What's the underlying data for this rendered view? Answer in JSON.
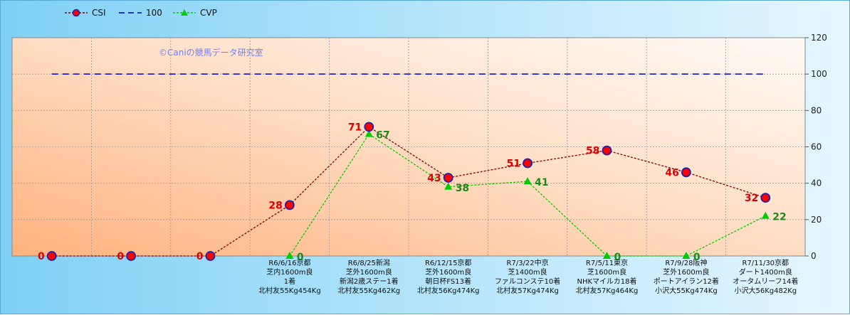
{
  "watermark": "©Caniの競馬データ研究室",
  "legend": [
    "CSI",
    "100",
    "CVP"
  ],
  "colors": {
    "csi_line": "#8b0000",
    "csi_marker_fill": "#ff0000",
    "csi_marker_edge": "#1f1fb0",
    "ref_line": "#0000cc",
    "cvp_line": "#00cc00",
    "cvp_marker": "#00cc00",
    "csi_label": "#e00000",
    "cvp_label": "#1a8a1a"
  },
  "chart_data": {
    "type": "line",
    "ylim": [
      0,
      120
    ],
    "yticks": [
      0,
      20,
      40,
      60,
      80,
      100,
      120
    ],
    "grid": true,
    "legend_position": "top-left",
    "categories": [
      [],
      [],
      [],
      [
        "R6/6/16京都",
        "芝内1600m良",
        "1着",
        "北村友55Kg454Kg"
      ],
      [
        "R6/8/25新潟",
        "芝外1600m良",
        "新潟2歳ステー1着",
        "北村友55Kg462Kg"
      ],
      [
        "R6/12/15京都",
        "芝外1600m良",
        "朝日杯FS13着",
        "北村友56Kg474Kg"
      ],
      [
        "R7/3/22中京",
        "芝1400m良",
        "ファルコンステ10着",
        "北村友57Kg474Kg"
      ],
      [
        "R7/5/11東京",
        "芝1600m良",
        "NHKマイルカ18着",
        "北村友57Kg464Kg"
      ],
      [
        "R7/9/28阪神",
        "芝外1600m良",
        "ポートアイラン12着",
        "小沢大55Kg474Kg"
      ],
      [
        "R7/11/30京都",
        "ダート1400m良",
        "オータムリーフ14着",
        "小沢大56Kg482Kg"
      ]
    ],
    "series": [
      {
        "name": "CSI",
        "values": [
          0,
          0,
          0,
          28,
          71,
          43,
          51,
          58,
          46,
          32
        ]
      },
      {
        "name": "100",
        "values": [
          100,
          100,
          100,
          100,
          100,
          100,
          100,
          100,
          100,
          100
        ]
      },
      {
        "name": "CVP",
        "values": [
          null,
          null,
          null,
          0,
          67,
          38,
          41,
          0,
          0,
          22
        ]
      }
    ]
  }
}
